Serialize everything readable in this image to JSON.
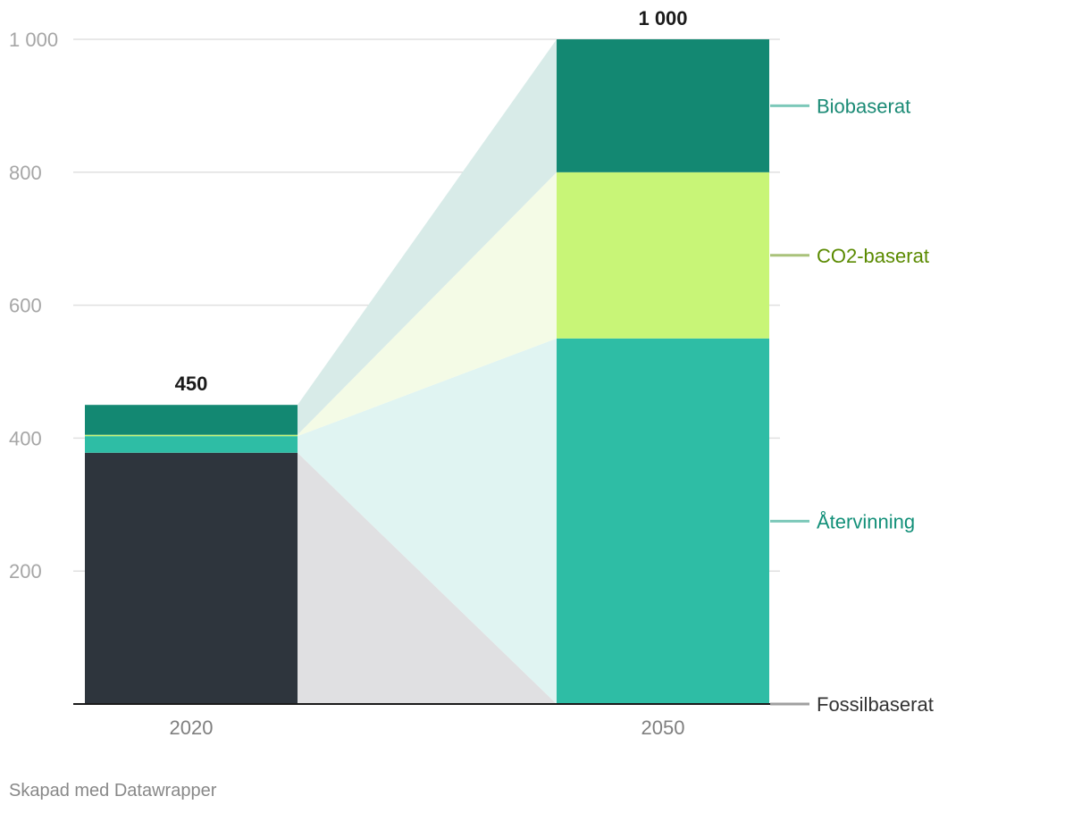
{
  "chart_data": {
    "type": "bar",
    "stacked": true,
    "categories": [
      "2020",
      "2050"
    ],
    "series": [
      {
        "name": "Fossilbaserat",
        "values": [
          378,
          0
        ],
        "color": "#2e353d",
        "label_color": "#333333",
        "legend_line": "#a0a0a0",
        "band": "#e0e0e2"
      },
      {
        "name": "Återvinning",
        "values": [
          25,
          550
        ],
        "color": "#2ebda5",
        "label_color": "#139079",
        "legend_line": "#7cc8b9",
        "band": "#e0f4f2"
      },
      {
        "name": "CO2-baserat",
        "values": [
          2,
          250
        ],
        "color": "#c8f577",
        "label_color": "#5a8a00",
        "legend_line": "#a9c27a",
        "band": "#f4fbe6"
      },
      {
        "name": "Biobaserat",
        "values": [
          45,
          200
        ],
        "color": "#138872",
        "label_color": "#1a8a75",
        "legend_line": "#7cc8b9",
        "band": "#d8ebe8"
      }
    ],
    "totals": [
      "450",
      "1 000"
    ],
    "yticks": [
      200,
      400,
      600,
      800,
      1000
    ],
    "ytick_labels": [
      "200",
      "400",
      "600",
      "800",
      "1 000"
    ],
    "ylim": [
      0,
      1000
    ],
    "grid": true,
    "legend": "right, direct labels"
  },
  "footer": {
    "credit": "Skapad med Datawrapper"
  }
}
